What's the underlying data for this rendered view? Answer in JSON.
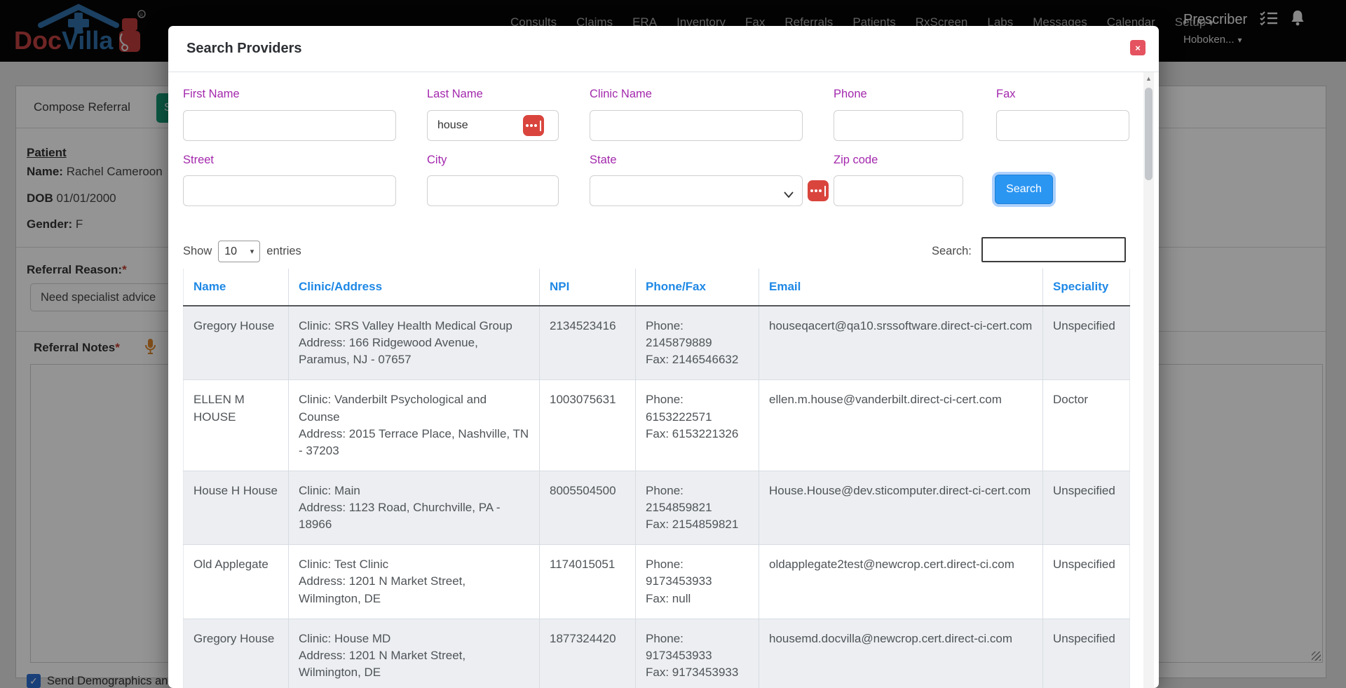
{
  "navbar": {
    "brand": {
      "part1": "Doc",
      "part2": "Villa",
      "registered": "®"
    },
    "items": [
      "Consults",
      "Claims",
      "ERA",
      "Inventory",
      "Fax",
      "Referrals",
      "Patients",
      "RxScreen",
      "Labs",
      "Messages",
      "Calendar",
      "Setup"
    ],
    "setup_caret": "▾",
    "user": {
      "name": "Prescriber",
      "location": "Hoboken...",
      "caret": "▾"
    }
  },
  "page": {
    "card_title": "Compose Referral",
    "action_button_label": "Search Providers",
    "patient": {
      "heading": "Patient",
      "name_label": "Name:",
      "name_value": "Rachel Cameroon",
      "dob_label": "DOB",
      "dob_value": "01/01/2000",
      "gender_label": "Gender:",
      "gender_value": "F"
    },
    "referral_reason": {
      "label": "Referral Reason:",
      "required": "*",
      "value": "Need specialist advice"
    },
    "referral_notes": {
      "label": "Referral Notes",
      "required": "*"
    },
    "send_demographics_label": "Send Demographics an"
  },
  "modal": {
    "title": "Search Providers",
    "close_glyph": "×",
    "form": {
      "first_name": {
        "label": "First Name",
        "value": ""
      },
      "last_name": {
        "label": "Last Name",
        "value": "house"
      },
      "clinic_name": {
        "label": "Clinic Name",
        "value": ""
      },
      "phone": {
        "label": "Phone",
        "value": ""
      },
      "fax": {
        "label": "Fax",
        "value": ""
      },
      "street": {
        "label": "Street",
        "value": ""
      },
      "city": {
        "label": "City",
        "value": ""
      },
      "state": {
        "label": "State",
        "value": ""
      },
      "zip": {
        "label": "Zip code",
        "value": ""
      },
      "search_button": "Search"
    },
    "entries": {
      "show_label": "Show",
      "size": "10",
      "entries_label": "entries"
    },
    "table_search_label": "Search:",
    "table_search_value": "",
    "table": {
      "headers": [
        "Name",
        "Clinic/Address",
        "NPI",
        "Phone/Fax",
        "Email",
        "Speciality"
      ],
      "rows": [
        {
          "name": "Gregory House",
          "clinic": "Clinic: SRS Valley Health Medical Group",
          "address": "Address: 166 Ridgewood Avenue, Paramus, NJ - 07657",
          "npi": "2134523416",
          "phone": "Phone: 2145879889",
          "fax": "Fax: 2146546632",
          "email": "houseqacert@qa10.srssoftware.direct-ci-cert.com",
          "speciality": "Unspecified"
        },
        {
          "name": "ELLEN M HOUSE",
          "clinic": "Clinic: Vanderbilt Psychological and Counse",
          "address": "Address: 2015 Terrace Place, Nashville, TN - 37203",
          "npi": "1003075631",
          "phone": "Phone: 6153222571",
          "fax": "Fax: 6153221326",
          "email": "ellen.m.house@vanderbilt.direct-ci-cert.com",
          "speciality": "Doctor"
        },
        {
          "name": "House H House",
          "clinic": "Clinic: Main",
          "address": "Address: 1123 Road, Churchville, PA - 18966",
          "npi": "8005504500",
          "phone": "Phone: 2154859821",
          "fax": "Fax: 2154859821",
          "email": "House.House@dev.sticomputer.direct-ci-cert.com",
          "speciality": "Unspecified"
        },
        {
          "name": "Old Applegate",
          "clinic": "Clinic: Test Clinic",
          "address": "Address: 1201 N Market Street, Wilmington, DE",
          "npi": "1174015051",
          "phone": "Phone: 9173453933",
          "fax": "Fax: null",
          "email": "oldapplegate2test@newcrop.cert.direct-ci.com",
          "speciality": "Unspecified"
        },
        {
          "name": "Gregory House",
          "clinic": "Clinic: House MD",
          "address": "Address: 1201 N Market Street, Wilmington, DE",
          "npi": "1877324420",
          "phone": "Phone: 9173453933",
          "fax": "Fax: 9173453933",
          "email": "housemd.docvilla@newcrop.cert.direct-ci.com",
          "speciality": "Unspecified"
        }
      ]
    }
  },
  "colors": {
    "accent_blue": "#2b96f2",
    "table_header_blue": "#1e88e5",
    "label_purple": "#a328ad",
    "password_icon_red": "#d9453d",
    "close_red": "#e4535f",
    "action_green": "#169b76",
    "navbar_black": "#060606",
    "mic_orange": "#e0882e",
    "checkbox_blue": "#2e6fd0"
  }
}
